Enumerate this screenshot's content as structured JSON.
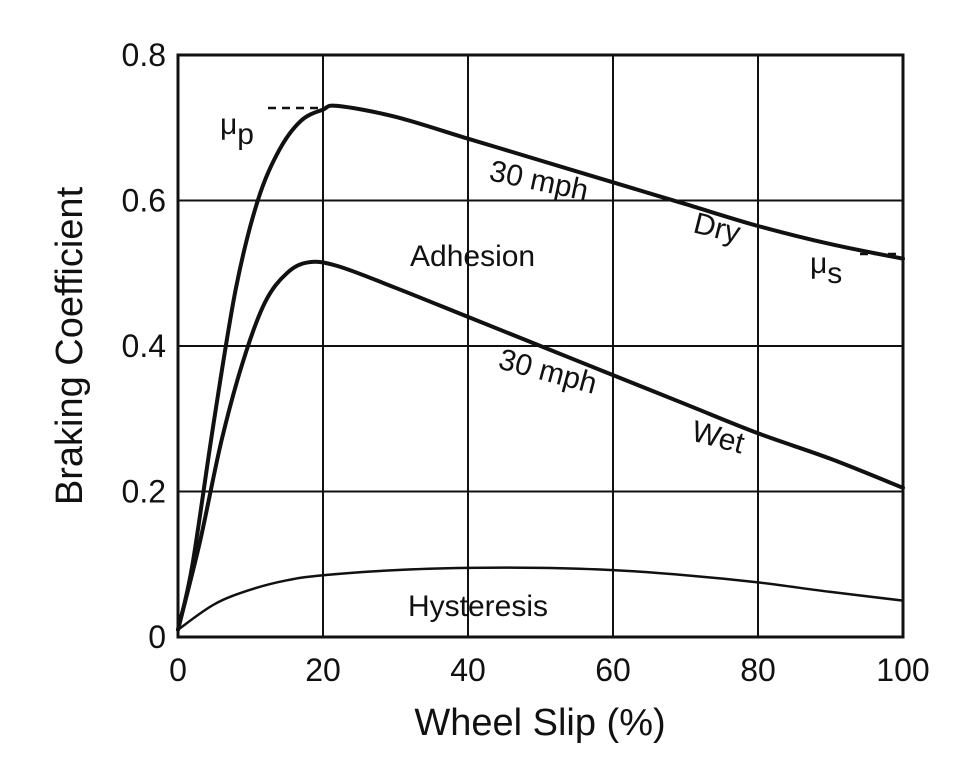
{
  "chart_data": {
    "type": "line",
    "xlabel": "Wheel Slip (%)",
    "ylabel": "Braking Coefficient",
    "xlim": [
      0,
      100
    ],
    "ylim": [
      0,
      0.8
    ],
    "x_ticks": [
      0,
      20,
      40,
      60,
      80,
      100
    ],
    "y_ticks": [
      0,
      0.2,
      0.4,
      0.6,
      0.8
    ],
    "x_tick_labels": [
      "0",
      "20",
      "40",
      "60",
      "80",
      "100"
    ],
    "y_tick_labels": [
      "0",
      "0.2",
      "0.4",
      "0.6",
      "0.8"
    ],
    "grid": true,
    "series": [
      {
        "key": "dry",
        "x": [
          0,
          2,
          5,
          8,
          11,
          14,
          17,
          20,
          22,
          30,
          40,
          50,
          60,
          70,
          80,
          90,
          100
        ],
        "y": [
          0.01,
          0.1,
          0.3,
          0.48,
          0.6,
          0.67,
          0.71,
          0.725,
          0.73,
          0.715,
          0.685,
          0.655,
          0.625,
          0.595,
          0.565,
          0.54,
          0.52
        ]
      },
      {
        "key": "wet",
        "x": [
          0,
          3,
          6,
          9,
          12,
          15,
          18,
          22,
          30,
          40,
          50,
          60,
          70,
          80,
          90,
          100
        ],
        "y": [
          0.01,
          0.13,
          0.27,
          0.38,
          0.46,
          0.5,
          0.515,
          0.51,
          0.48,
          0.44,
          0.4,
          0.36,
          0.32,
          0.28,
          0.245,
          0.205
        ]
      },
      {
        "key": "hysteresis",
        "x": [
          0,
          5,
          10,
          15,
          20,
          30,
          40,
          50,
          60,
          70,
          80,
          90,
          100
        ],
        "y": [
          0.01,
          0.045,
          0.065,
          0.078,
          0.085,
          0.092,
          0.095,
          0.095,
          0.092,
          0.085,
          0.075,
          0.062,
          0.05
        ]
      }
    ],
    "annotations": {
      "mu_p": "μ",
      "mu_p_sub": "p",
      "mu_s": "μ",
      "mu_s_sub": "s",
      "dry_speed": "30 mph",
      "dry_label": "Dry",
      "wet_speed": "30 mph",
      "wet_label": "Wet",
      "adhesion": "Adhesion",
      "hysteresis": "Hysteresis"
    }
  }
}
